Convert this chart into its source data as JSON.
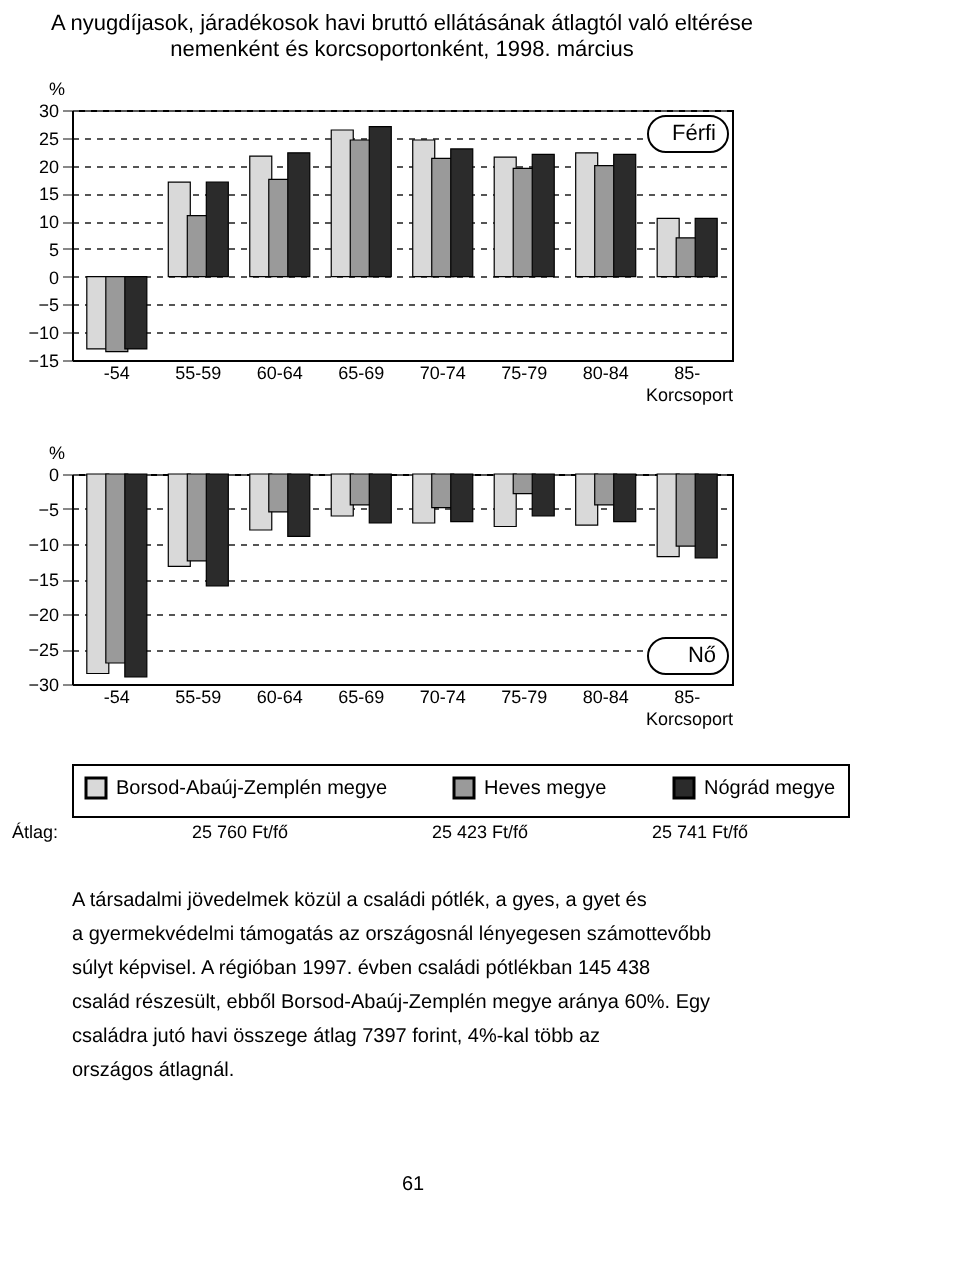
{
  "chart_data": [
    {
      "type": "bar",
      "title": "A nyugdíjasok, járadékosok havi bruttó ellátásának átlagtól való eltérése nemenként és korcsoportonként, 1998. március",
      "categories": [
        "-54",
        "55-59",
        "60-64",
        "65-69",
        "70-74",
        "75-79",
        "80-84",
        "85-"
      ],
      "series": [
        {
          "color": "#d9d9d9",
          "values": [
            -13,
            17,
            21.7,
            26.4,
            24.6,
            21.5,
            22.3,
            10.5
          ]
        },
        {
          "color": "#9a9a9a",
          "values": [
            -13.5,
            11,
            17.5,
            24.6,
            21.3,
            19.5,
            20,
            7
          ]
        },
        {
          "color": "#2b2b2b",
          "values": [
            -13,
            17,
            22.3,
            27,
            23,
            22,
            22,
            10.5
          ]
        }
      ],
      "ylim": [
        -15,
        30
      ],
      "yticks": [
        -15,
        -10,
        -5,
        0,
        5,
        10,
        15,
        20,
        25,
        30
      ],
      "ylabel": "%",
      "xlabel": "Korcsoport",
      "grid": "y",
      "legend": false,
      "annotations": [
        "Férfi"
      ]
    },
    {
      "type": "bar",
      "categories": [
        "-54",
        "55-59",
        "60-64",
        "65-69",
        "70-74",
        "75-79",
        "80-84",
        "85-"
      ],
      "series": [
        {
          "name": "Borsod-Abaúj-Zemplén megye",
          "color": "#d9d9d9",
          "values": [
            -28.5,
            -13.2,
            -8,
            -6,
            -7,
            -7.5,
            -7.3,
            -11.8
          ]
        },
        {
          "name": "Heves megye",
          "color": "#9a9a9a",
          "values": [
            -27,
            -12.4,
            -5.4,
            -4.4,
            -4.8,
            -2.8,
            -4.4,
            -10.3
          ]
        },
        {
          "name": "Nógrád megye",
          "color": "#2b2b2b",
          "values": [
            -29,
            -16,
            -8.9,
            -7,
            -6.8,
            -6,
            -6.8,
            -12
          ]
        }
      ],
      "ylim": [
        -30,
        0
      ],
      "yticks": [
        -30,
        -25,
        -20,
        -15,
        -10,
        -5,
        0
      ],
      "ylabel": "%",
      "xlabel": "Korcsoport",
      "grid": "y",
      "legend": "bottom",
      "annotations": [
        "Nő",
        "Átlag:",
        "25 760 Ft/fő",
        "25 423 Ft/fő",
        "25 741 Ft/fő"
      ]
    },
    {
      "type": "other",
      "annotations": [
        "A társadalmi jövedelmek közül a családi pótlék, a gyes, a gyet és a gyermekvédelmi támogatás az országosnál lényegesen számottevőbb súlyt képvisel. A régióban 1997. évben családi pótlékban 145 438 család részesült, ebből Borsod-Abaúj-Zemplén megye aránya 60%. Egy családra jutó havi összege átlag 7397 forint, 4%-kal több az országos átlagnál.",
        "61"
      ]
    }
  ]
}
